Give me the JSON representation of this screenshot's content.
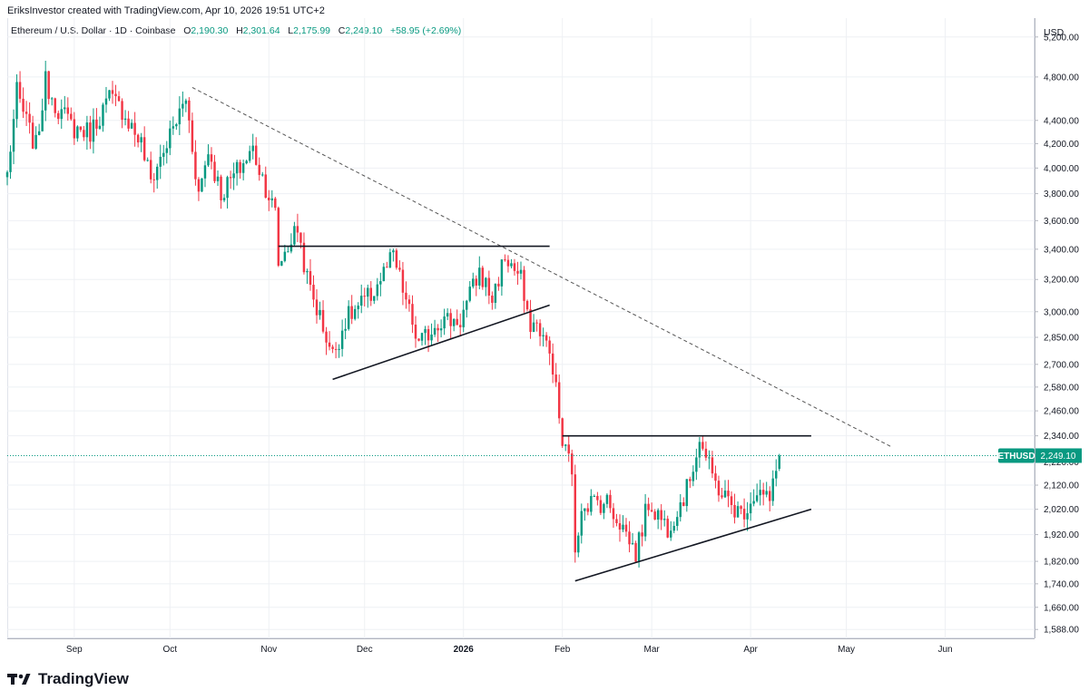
{
  "header": {
    "credit": "EriksInvestor created with TradingView.com, Apr 10, 2026 19:51 UTC+2"
  },
  "legend": {
    "symbol": "Ethereum / U.S. Dollar · 1D · Coinbase",
    "o_label": "O",
    "o": "2,190.30",
    "h_label": "H",
    "h": "2,301.64",
    "l_label": "L",
    "l": "2,175.99",
    "c_label": "C",
    "c": "2,249.10",
    "change": "+58.95 (+2.69%)"
  },
  "axis": {
    "currency": "USD"
  },
  "brand": {
    "name": "TradingView"
  },
  "colors": {
    "up": "#089981",
    "down": "#f23645",
    "grid": "#eef0f4",
    "last_price": "#089981"
  },
  "chart_data": {
    "type": "candlestick",
    "symbol": "ETHUSD",
    "last_price": "2,249.10",
    "y_scale": "log",
    "ylim": [
      1560,
      5400
    ],
    "y_ticks": [
      {
        "v": 5200,
        "label": "5,200.00"
      },
      {
        "v": 4800,
        "label": "4,800.00"
      },
      {
        "v": 4400,
        "label": "4,400.00"
      },
      {
        "v": 4200,
        "label": "4,200.00"
      },
      {
        "v": 4000,
        "label": "4,000.00"
      },
      {
        "v": 3800,
        "label": "3,800.00"
      },
      {
        "v": 3600,
        "label": "3,600.00"
      },
      {
        "v": 3400,
        "label": "3,400.00"
      },
      {
        "v": 3200,
        "label": "3,200.00"
      },
      {
        "v": 3000,
        "label": "3,000.00"
      },
      {
        "v": 2850,
        "label": "2,850.00"
      },
      {
        "v": 2700,
        "label": "2,700.00"
      },
      {
        "v": 2580,
        "label": "2,580.00"
      },
      {
        "v": 2460,
        "label": "2,460.00"
      },
      {
        "v": 2340,
        "label": "2,340.00"
      },
      {
        "v": 2220,
        "label": "2,220.00"
      },
      {
        "v": 2120,
        "label": "2,120.00"
      },
      {
        "v": 2020,
        "label": "2,020.00"
      },
      {
        "v": 1920,
        "label": "1,920.00"
      },
      {
        "v": 1820,
        "label": "1,820.00"
      },
      {
        "v": 1740,
        "label": "1,740.00"
      },
      {
        "v": 1660,
        "label": "1,660.00"
      },
      {
        "v": 1588,
        "label": "1,588.00"
      }
    ],
    "x_start": "2025-08-11",
    "x_end": "2026-06-29",
    "x_ticks": [
      {
        "date": "2025-09-01",
        "label": "Sep",
        "bold": false
      },
      {
        "date": "2025-10-01",
        "label": "Oct",
        "bold": false
      },
      {
        "date": "2025-11-01",
        "label": "Nov",
        "bold": false
      },
      {
        "date": "2025-12-01",
        "label": "Dec",
        "bold": false
      },
      {
        "date": "2026-01-01",
        "label": "2026",
        "bold": true
      },
      {
        "date": "2026-02-01",
        "label": "Feb",
        "bold": false
      },
      {
        "date": "2026-03-01",
        "label": "Mar",
        "bold": false
      },
      {
        "date": "2026-04-01",
        "label": "Apr",
        "bold": false
      },
      {
        "date": "2026-05-01",
        "label": "May",
        "bold": false
      },
      {
        "date": "2026-06-01",
        "label": "Jun",
        "bold": false
      }
    ],
    "anchors": [
      [
        "2025-08-11",
        3950
      ],
      [
        "2025-08-14",
        4650
      ],
      [
        "2025-08-18",
        4300
      ],
      [
        "2025-08-20",
        4180
      ],
      [
        "2025-08-23",
        4750
      ],
      [
        "2025-08-27",
        4500
      ],
      [
        "2025-09-01",
        4330
      ],
      [
        "2025-09-06",
        4300
      ],
      [
        "2025-09-12",
        4600
      ],
      [
        "2025-09-16",
        4500
      ],
      [
        "2025-09-22",
        4200
      ],
      [
        "2025-09-25",
        3900
      ],
      [
        "2025-09-30",
        4200
      ],
      [
        "2025-10-06",
        4600
      ],
      [
        "2025-10-10",
        3800
      ],
      [
        "2025-10-13",
        4150
      ],
      [
        "2025-10-17",
        3800
      ],
      [
        "2025-10-27",
        4150
      ],
      [
        "2025-11-03",
        3650
      ],
      [
        "2025-11-04",
        3300
      ],
      [
        "2025-11-10",
        3550
      ],
      [
        "2025-11-13",
        3200
      ],
      [
        "2025-11-21",
        2750
      ],
      [
        "2025-11-25",
        2950
      ],
      [
        "2025-12-03",
        3100
      ],
      [
        "2025-12-10",
        3350
      ],
      [
        "2025-12-18",
        2800
      ],
      [
        "2025-12-24",
        2950
      ],
      [
        "2025-12-31",
        2950
      ],
      [
        "2026-01-06",
        3250
      ],
      [
        "2026-01-10",
        3080
      ],
      [
        "2026-01-14",
        3350
      ],
      [
        "2026-01-19",
        3200
      ],
      [
        "2026-01-21",
        2950
      ],
      [
        "2026-01-25",
        2900
      ],
      [
        "2026-01-29",
        2700
      ],
      [
        "2026-02-01",
        2300
      ],
      [
        "2026-02-04",
        2200
      ],
      [
        "2026-02-05",
        1820
      ],
      [
        "2026-02-07",
        2050
      ],
      [
        "2026-02-15",
        2050
      ],
      [
        "2026-02-20",
        1950
      ],
      [
        "2026-02-24",
        1850
      ],
      [
        "2026-02-28",
        2050
      ],
      [
        "2026-03-06",
        1950
      ],
      [
        "2026-03-12",
        2100
      ],
      [
        "2026-03-16",
        2330
      ],
      [
        "2026-03-20",
        2150
      ],
      [
        "2026-03-25",
        2050
      ],
      [
        "2026-03-29",
        2000
      ],
      [
        "2026-04-03",
        2100
      ],
      [
        "2026-04-07",
        2050
      ],
      [
        "2026-04-10",
        2249.1
      ]
    ],
    "trendlines": [
      {
        "name": "downtrend",
        "style": "dashed",
        "from": [
          "2025-10-08",
          4700
        ],
        "to": [
          "2026-05-15",
          2290
        ]
      },
      {
        "name": "range1-top",
        "style": "solid",
        "from": [
          "2025-11-04",
          3420
        ],
        "to": [
          "2026-01-28",
          3420
        ]
      },
      {
        "name": "range1-bottom",
        "style": "solid",
        "from": [
          "2025-11-21",
          2620
        ],
        "to": [
          "2026-01-28",
          3040
        ]
      },
      {
        "name": "range2-top",
        "style": "solid",
        "from": [
          "2026-02-01",
          2340
        ],
        "to": [
          "2026-04-20",
          2340
        ]
      },
      {
        "name": "range2-bottom",
        "style": "solid",
        "from": [
          "2026-02-05",
          1750
        ],
        "to": [
          "2026-04-20",
          2020
        ]
      }
    ]
  }
}
